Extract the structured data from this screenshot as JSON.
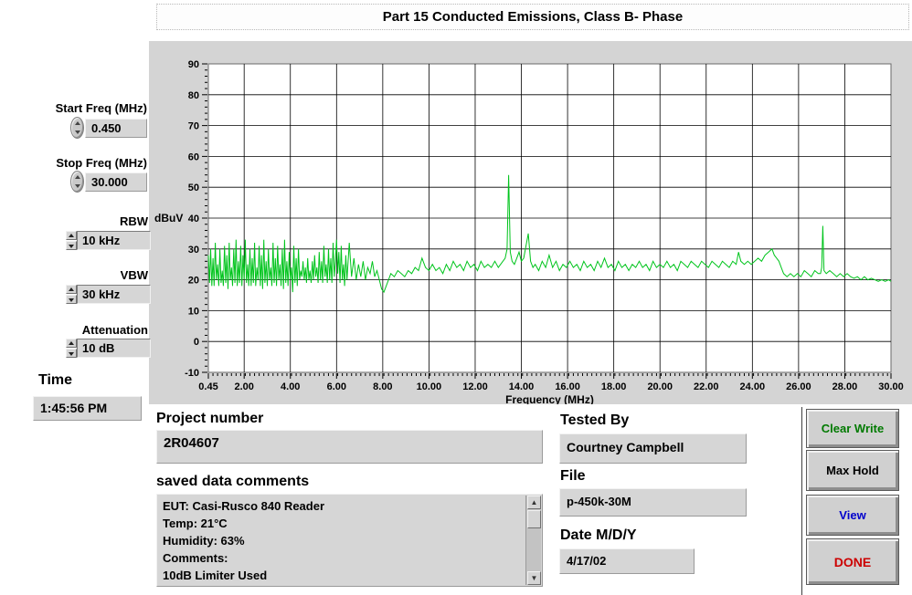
{
  "title": "Part 15 Conducted Emissions, Class B- Phase",
  "controls": {
    "start_freq": {
      "label": "Start Freq (MHz)",
      "value": "0.450"
    },
    "stop_freq": {
      "label": "Stop Freq (MHz)",
      "value": "30.000"
    },
    "rbw": {
      "label": "RBW",
      "value": "10 kHz"
    },
    "vbw": {
      "label": "VBW",
      "value": "30 kHz"
    },
    "attenuation": {
      "label": "Attenuation",
      "value": "10 dB"
    }
  },
  "time": {
    "label": "Time",
    "value": "1:45:56 PM"
  },
  "fields": {
    "project": {
      "label": "Project number",
      "value": "2R04607"
    },
    "comments": {
      "label": "saved data comments",
      "lines": [
        "EUT: Casi-Rusco 840 Reader",
        "Temp: 21°C",
        "Humidity: 63%",
        "Comments:",
        "10dB Limiter Used"
      ]
    },
    "tested_by": {
      "label": "Tested By",
      "value": "Courtney Campbell"
    },
    "file": {
      "label": "File",
      "value": "p-450k-30M"
    },
    "date": {
      "label": "Date M/D/Y",
      "value": "4/17/02"
    }
  },
  "buttons": [
    {
      "label": "Clear Write",
      "color": "#007a00"
    },
    {
      "label": "Max Hold",
      "color": "#000000"
    },
    {
      "label": "View",
      "color": "#0000cc"
    },
    {
      "label": "DONE",
      "color": "#cc0000"
    }
  ],
  "scrollbar": {
    "up_glyph": "▲",
    "down_glyph": "▼"
  },
  "chart_data": {
    "type": "line",
    "title": "",
    "xlabel": "Frequency (MHz)",
    "ylabel": "dBuV",
    "xlim": [
      0.45,
      30
    ],
    "ylim": [
      -10,
      90
    ],
    "grid": true,
    "legend": "none",
    "line_color": "#00c41c",
    "x_ticks": [
      0.45,
      2,
      4,
      6,
      8,
      10,
      12,
      14,
      16,
      18,
      20,
      22,
      24,
      26,
      28,
      30
    ],
    "x_tick_labels": [
      "0.45",
      "2.00",
      "4.00",
      "6.00",
      "8.00",
      "10.00",
      "12.00",
      "14.00",
      "16.00",
      "18.00",
      "20.00",
      "22.00",
      "24.00",
      "26.00",
      "28.00",
      "30.00"
    ],
    "y_ticks": [
      90,
      80,
      70,
      60,
      50,
      40,
      30,
      20,
      10,
      0,
      -10
    ],
    "y_tick_labels": [
      "90",
      "80",
      "70",
      "60",
      "50",
      "40",
      "30",
      "20",
      "10",
      "0",
      "-10"
    ],
    "peaks": [
      {
        "x": 13.45,
        "y": 54
      },
      {
        "x": 14.3,
        "y": 35
      },
      {
        "x": 27.05,
        "y": 37.5
      }
    ],
    "series": [
      {
        "name": "emissions-trace",
        "points": [
          [
            0.45,
            28
          ],
          [
            0.5,
            19
          ],
          [
            0.55,
            30
          ],
          [
            0.6,
            18
          ],
          [
            0.65,
            27
          ],
          [
            0.7,
            18
          ],
          [
            0.75,
            32
          ],
          [
            0.8,
            20
          ],
          [
            0.85,
            25
          ],
          [
            0.9,
            18
          ],
          [
            0.95,
            30
          ],
          [
            1.0,
            19
          ],
          [
            1.05,
            23
          ],
          [
            1.1,
            18
          ],
          [
            1.15,
            31
          ],
          [
            1.2,
            19
          ],
          [
            1.25,
            28
          ],
          [
            1.3,
            17
          ],
          [
            1.35,
            32
          ],
          [
            1.4,
            20
          ],
          [
            1.45,
            24
          ],
          [
            1.5,
            18
          ],
          [
            1.55,
            30
          ],
          [
            1.6,
            19
          ],
          [
            1.65,
            33
          ],
          [
            1.7,
            18
          ],
          [
            1.75,
            26
          ],
          [
            1.8,
            19
          ],
          [
            1.85,
            31
          ],
          [
            1.9,
            18
          ],
          [
            1.95,
            28
          ],
          [
            2.0,
            20
          ],
          [
            2.05,
            33
          ],
          [
            2.1,
            19
          ],
          [
            2.15,
            25
          ],
          [
            2.2,
            18
          ],
          [
            2.25,
            30
          ],
          [
            2.3,
            18
          ],
          [
            2.35,
            27
          ],
          [
            2.4,
            19
          ],
          [
            2.45,
            32
          ],
          [
            2.5,
            18
          ],
          [
            2.55,
            24
          ],
          [
            2.6,
            20
          ],
          [
            2.65,
            31
          ],
          [
            2.7,
            18
          ],
          [
            2.75,
            28
          ],
          [
            2.8,
            17
          ],
          [
            2.85,
            33
          ],
          [
            2.9,
            19
          ],
          [
            2.95,
            26
          ],
          [
            3.0,
            18
          ],
          [
            3.05,
            30
          ],
          [
            3.1,
            20
          ],
          [
            3.15,
            24
          ],
          [
            3.2,
            18
          ],
          [
            3.25,
            32
          ],
          [
            3.3,
            19
          ],
          [
            3.35,
            27
          ],
          [
            3.4,
            18
          ],
          [
            3.45,
            31
          ],
          [
            3.5,
            20
          ],
          [
            3.55,
            25
          ],
          [
            3.6,
            18
          ],
          [
            3.65,
            30
          ],
          [
            3.7,
            17
          ],
          [
            3.75,
            33
          ],
          [
            3.8,
            19
          ],
          [
            3.85,
            26
          ],
          [
            3.9,
            18
          ],
          [
            3.95,
            29
          ],
          [
            4.0,
            20
          ],
          [
            4.05,
            24
          ],
          [
            4.1,
            16
          ],
          [
            4.15,
            31
          ],
          [
            4.2,
            19
          ],
          [
            4.25,
            27
          ],
          [
            4.3,
            18
          ],
          [
            4.35,
            30
          ],
          [
            4.4,
            20
          ],
          [
            4.45,
            23
          ],
          [
            4.5,
            21
          ],
          [
            4.55,
            26
          ],
          [
            4.6,
            20
          ],
          [
            4.65,
            24
          ],
          [
            4.7,
            19
          ],
          [
            4.75,
            27
          ],
          [
            4.8,
            20
          ],
          [
            4.85,
            23
          ],
          [
            4.9,
            19
          ],
          [
            4.95,
            26
          ],
          [
            5.0,
            20
          ],
          [
            5.05,
            28
          ],
          [
            5.1,
            21
          ],
          [
            5.15,
            24
          ],
          [
            5.2,
            19
          ],
          [
            5.25,
            29
          ],
          [
            5.3,
            20
          ],
          [
            5.35,
            26
          ],
          [
            5.4,
            19
          ],
          [
            5.45,
            31
          ],
          [
            5.5,
            21
          ],
          [
            5.55,
            25
          ],
          [
            5.6,
            19
          ],
          [
            5.65,
            30
          ],
          [
            5.7,
            20
          ],
          [
            5.75,
            27
          ],
          [
            5.8,
            19
          ],
          [
            5.85,
            32
          ],
          [
            5.9,
            21
          ],
          [
            5.95,
            26
          ],
          [
            6.0,
            33
          ],
          [
            6.05,
            22
          ],
          [
            6.1,
            29
          ],
          [
            6.15,
            19
          ],
          [
            6.2,
            31
          ],
          [
            6.25,
            20
          ],
          [
            6.3,
            25
          ],
          [
            6.35,
            18
          ],
          [
            6.4,
            28
          ],
          [
            6.45,
            20
          ],
          [
            6.55,
            32
          ],
          [
            6.65,
            21
          ],
          [
            6.75,
            27
          ],
          [
            6.85,
            20
          ],
          [
            6.95,
            25
          ],
          [
            7.05,
            21
          ],
          [
            7.15,
            26
          ],
          [
            7.25,
            20
          ],
          [
            7.35,
            24
          ],
          [
            7.45,
            22
          ],
          [
            7.55,
            26
          ],
          [
            7.65,
            21
          ],
          [
            7.75,
            23
          ],
          [
            7.85,
            20
          ],
          [
            7.95,
            17
          ],
          [
            8.05,
            16
          ],
          [
            8.15,
            18
          ],
          [
            8.25,
            20
          ],
          [
            8.35,
            22
          ],
          [
            8.5,
            21
          ],
          [
            8.65,
            23
          ],
          [
            8.8,
            22
          ],
          [
            8.95,
            21
          ],
          [
            9.1,
            23
          ],
          [
            9.25,
            22
          ],
          [
            9.4,
            24
          ],
          [
            9.55,
            23
          ],
          [
            9.7,
            27
          ],
          [
            9.85,
            24
          ],
          [
            10.0,
            23
          ],
          [
            10.15,
            25
          ],
          [
            10.3,
            23
          ],
          [
            10.45,
            24
          ],
          [
            10.6,
            22
          ],
          [
            10.75,
            25
          ],
          [
            10.9,
            23
          ],
          [
            11.05,
            26
          ],
          [
            11.2,
            24
          ],
          [
            11.35,
            25
          ],
          [
            11.5,
            23
          ],
          [
            11.65,
            26
          ],
          [
            11.8,
            24
          ],
          [
            11.95,
            25
          ],
          [
            12.1,
            23
          ],
          [
            12.25,
            26
          ],
          [
            12.4,
            24
          ],
          [
            12.55,
            25
          ],
          [
            12.7,
            24
          ],
          [
            12.85,
            26
          ],
          [
            13.0,
            24
          ],
          [
            13.1,
            25
          ],
          [
            13.2,
            26
          ],
          [
            13.3,
            27
          ],
          [
            13.38,
            30
          ],
          [
            13.45,
            54
          ],
          [
            13.52,
            29
          ],
          [
            13.6,
            26
          ],
          [
            13.7,
            25
          ],
          [
            13.8,
            27
          ],
          [
            13.9,
            29
          ],
          [
            14.0,
            26
          ],
          [
            14.1,
            27
          ],
          [
            14.2,
            31
          ],
          [
            14.3,
            35
          ],
          [
            14.4,
            26
          ],
          [
            14.5,
            24
          ],
          [
            14.6,
            25
          ],
          [
            14.75,
            23
          ],
          [
            14.9,
            26
          ],
          [
            15.05,
            24
          ],
          [
            15.2,
            28
          ],
          [
            15.35,
            24
          ],
          [
            15.5,
            26
          ],
          [
            15.65,
            23
          ],
          [
            15.8,
            25
          ],
          [
            15.95,
            24
          ],
          [
            16.1,
            26
          ],
          [
            16.25,
            24
          ],
          [
            16.4,
            25
          ],
          [
            16.55,
            23
          ],
          [
            16.7,
            26
          ],
          [
            16.85,
            24
          ],
          [
            17.0,
            25
          ],
          [
            17.15,
            23
          ],
          [
            17.3,
            26
          ],
          [
            17.45,
            24
          ],
          [
            17.6,
            27
          ],
          [
            17.75,
            24
          ],
          [
            17.9,
            25
          ],
          [
            18.05,
            23
          ],
          [
            18.2,
            26
          ],
          [
            18.35,
            24
          ],
          [
            18.5,
            25
          ],
          [
            18.65,
            23
          ],
          [
            18.8,
            25
          ],
          [
            18.95,
            24
          ],
          [
            19.1,
            26
          ],
          [
            19.25,
            24
          ],
          [
            19.4,
            25
          ],
          [
            19.55,
            23
          ],
          [
            19.7,
            26
          ],
          [
            19.85,
            24
          ],
          [
            20.0,
            25
          ],
          [
            20.15,
            24
          ],
          [
            20.3,
            26
          ],
          [
            20.45,
            24
          ],
          [
            20.6,
            25
          ],
          [
            20.75,
            23
          ],
          [
            20.9,
            26
          ],
          [
            21.05,
            25
          ],
          [
            21.2,
            24
          ],
          [
            21.35,
            26
          ],
          [
            21.5,
            25
          ],
          [
            21.65,
            24
          ],
          [
            21.8,
            26
          ],
          [
            21.95,
            25
          ],
          [
            22.1,
            24
          ],
          [
            22.25,
            26
          ],
          [
            22.4,
            25
          ],
          [
            22.55,
            24
          ],
          [
            22.7,
            26
          ],
          [
            22.85,
            25
          ],
          [
            23.0,
            24
          ],
          [
            23.15,
            26
          ],
          [
            23.3,
            25
          ],
          [
            23.4,
            29
          ],
          [
            23.5,
            26
          ],
          [
            23.65,
            25
          ],
          [
            23.8,
            26
          ],
          [
            23.95,
            25
          ],
          [
            24.1,
            26
          ],
          [
            24.25,
            27
          ],
          [
            24.4,
            26
          ],
          [
            24.55,
            28
          ],
          [
            24.7,
            29
          ],
          [
            24.85,
            30
          ],
          [
            24.95,
            28
          ],
          [
            25.05,
            27
          ],
          [
            25.15,
            26
          ],
          [
            25.25,
            24
          ],
          [
            25.35,
            22
          ],
          [
            25.5,
            21
          ],
          [
            25.65,
            22
          ],
          [
            25.8,
            21
          ],
          [
            25.95,
            22
          ],
          [
            26.1,
            21
          ],
          [
            26.25,
            23
          ],
          [
            26.4,
            22
          ],
          [
            26.55,
            21
          ],
          [
            26.7,
            23
          ],
          [
            26.85,
            22
          ],
          [
            26.95,
            22
          ],
          [
            27.0,
            24
          ],
          [
            27.05,
            37.5
          ],
          [
            27.1,
            23
          ],
          [
            27.2,
            22
          ],
          [
            27.35,
            23
          ],
          [
            27.5,
            22
          ],
          [
            27.65,
            21
          ],
          [
            27.8,
            22
          ],
          [
            27.95,
            21
          ],
          [
            28.1,
            22
          ],
          [
            28.25,
            21
          ],
          [
            28.4,
            20.5
          ],
          [
            28.55,
            21
          ],
          [
            28.7,
            20
          ],
          [
            28.85,
            21
          ],
          [
            29.0,
            20
          ],
          [
            29.15,
            20.5
          ],
          [
            29.3,
            20
          ],
          [
            29.45,
            19.5
          ],
          [
            29.6,
            20
          ],
          [
            29.75,
            19.5
          ],
          [
            29.9,
            20
          ],
          [
            30.0,
            19.5
          ]
        ]
      }
    ]
  }
}
